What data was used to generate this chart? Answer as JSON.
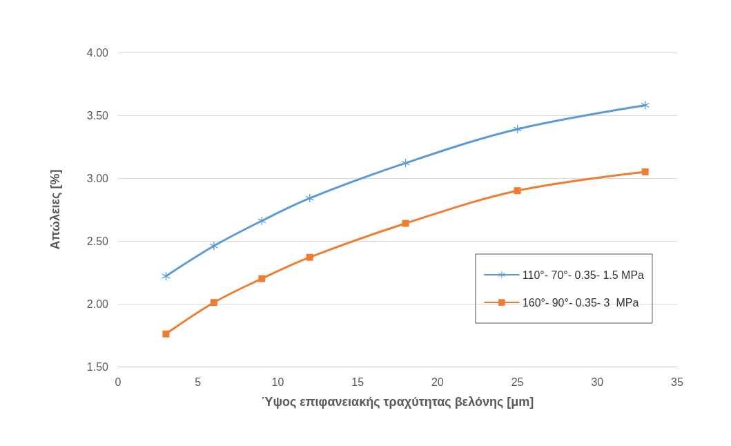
{
  "chart_data": {
    "type": "line",
    "xlabel": "Ύψος επιφανειακής τραχύτητας βελόνης [μm]",
    "ylabel": "Απώλειες [%]",
    "x": [
      3,
      6,
      9,
      12,
      18,
      25,
      33
    ],
    "series": [
      {
        "name": "110°- 70°- 0.35- 1.5 MPa",
        "color": "#5b9bd5",
        "marker": "cross",
        "values": [
          2.22,
          2.46,
          2.66,
          2.84,
          3.12,
          3.39,
          3.58
        ]
      },
      {
        "name": "160°- 90°- 0.35- 3  MPa",
        "color": "#ed7d31",
        "marker": "square",
        "values": [
          1.76,
          2.01,
          2.2,
          2.37,
          2.64,
          2.9,
          3.05
        ]
      }
    ],
    "xlim": [
      0,
      35
    ],
    "xticks": [
      0,
      5,
      10,
      15,
      20,
      25,
      30,
      35
    ],
    "ylim": [
      1.5,
      4
    ],
    "yticks": [
      {
        "value": 1.5,
        "label": "1.50"
      },
      {
        "value": 2,
        "label": "2.00"
      },
      {
        "value": 2.5,
        "label": "2.50"
      },
      {
        "value": 3,
        "label": "3.00"
      },
      {
        "value": 3.5,
        "label": "3.50"
      },
      {
        "value": 4,
        "label": "4.00"
      }
    ],
    "grid": "y",
    "legend": "right",
    "line_style": "solid"
  }
}
